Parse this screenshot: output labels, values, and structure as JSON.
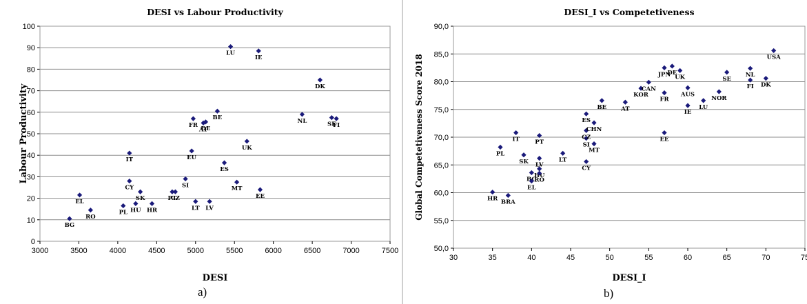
{
  "chart_data": [
    {
      "type": "scatter",
      "title": "DESI vs Labour Productivity",
      "xlabel": "DESI",
      "ylabel": "Labour Productivity",
      "xlim": [
        3000,
        7500
      ],
      "ylim": [
        0,
        100
      ],
      "x_ticks": [
        "3000",
        "3500",
        "4000",
        "4500",
        "5000",
        "5500",
        "6000",
        "6500",
        "7000",
        "7500"
      ],
      "y_ticks": [
        "0",
        "10",
        "20",
        "30",
        "40",
        "50",
        "60",
        "70",
        "80",
        "90",
        "100"
      ],
      "grid": "horizontal",
      "marker_color": "#1a1a7a",
      "points": [
        {
          "label": "BG",
          "x": 3380,
          "y": 10.5
        },
        {
          "label": "EL",
          "x": 3510,
          "y": 21.5
        },
        {
          "label": "RO",
          "x": 3650,
          "y": 14.5
        },
        {
          "label": "PL",
          "x": 4070,
          "y": 16.5
        },
        {
          "label": "IT",
          "x": 4150,
          "y": 41
        },
        {
          "label": "CY",
          "x": 4150,
          "y": 28
        },
        {
          "label": "SK",
          "x": 4290,
          "y": 23
        },
        {
          "label": "HU",
          "x": 4230,
          "y": 17.5
        },
        {
          "label": "HR",
          "x": 4440,
          "y": 17.5
        },
        {
          "label": "PT",
          "x": 4700,
          "y": 23
        },
        {
          "label": "CZ",
          "x": 4740,
          "y": 23
        },
        {
          "label": "SI",
          "x": 4870,
          "y": 29
        },
        {
          "label": "LU",
          "x": 5450,
          "y": 90.5
        },
        {
          "label": "IE",
          "x": 5810,
          "y": 88.5
        },
        {
          "label": "FR",
          "x": 4970,
          "y": 57
        },
        {
          "label": "AT",
          "x": 5100,
          "y": 55
        },
        {
          "label": "DE",
          "x": 5130,
          "y": 55.5
        },
        {
          "label": "BE",
          "x": 5280,
          "y": 60.5
        },
        {
          "label": "EU",
          "x": 4950,
          "y": 42
        },
        {
          "label": "ES",
          "x": 5370,
          "y": 36.5
        },
        {
          "label": "LT",
          "x": 5000,
          "y": 18.5
        },
        {
          "label": "LV",
          "x": 5180,
          "y": 18.5
        },
        {
          "label": "MT",
          "x": 5530,
          "y": 27.5
        },
        {
          "label": "EE",
          "x": 5830,
          "y": 24
        },
        {
          "label": "UK",
          "x": 5660,
          "y": 46.5
        },
        {
          "label": "NL",
          "x": 6370,
          "y": 59
        },
        {
          "label": "DK",
          "x": 6600,
          "y": 75
        },
        {
          "label": "SE",
          "x": 6750,
          "y": 57.5
        },
        {
          "label": "FI",
          "x": 6810,
          "y": 57
        }
      ]
    },
    {
      "type": "scatter",
      "title": "DESI_I vs Competetiveness",
      "xlabel": "DESI_I",
      "ylabel": "Global Competetiveness Score 2018",
      "xlim": [
        30,
        75
      ],
      "ylim": [
        50,
        90
      ],
      "x_ticks": [
        "30",
        "35",
        "40",
        "45",
        "50",
        "55",
        "60",
        "65",
        "70",
        "75"
      ],
      "y_ticks": [
        "50,0",
        "55,0",
        "60,0",
        "65,0",
        "70,0",
        "75,0",
        "80,0",
        "85,0",
        "90,0"
      ],
      "grid": "horizontal",
      "marker_color": "#1a1a7a",
      "points": [
        {
          "label": "HR",
          "x": 35,
          "y": 60.1
        },
        {
          "label": "BRA",
          "x": 37,
          "y": 59.5
        },
        {
          "label": "PL",
          "x": 36,
          "y": 68.2
        },
        {
          "label": "IT",
          "x": 38,
          "y": 70.8
        },
        {
          "label": "SK",
          "x": 39,
          "y": 66.8
        },
        {
          "label": "BG",
          "x": 40,
          "y": 63.6
        },
        {
          "label": "EL",
          "x": 40,
          "y": 62.1
        },
        {
          "label": "HU",
          "x": 41,
          "y": 64.3
        },
        {
          "label": "RO",
          "x": 41,
          "y": 63.5
        },
        {
          "label": "LV",
          "x": 41,
          "y": 66.2
        },
        {
          "label": "PT",
          "x": 41,
          "y": 70.3
        },
        {
          "label": "LT",
          "x": 44,
          "y": 67.1
        },
        {
          "label": "CY",
          "x": 47,
          "y": 65.6
        },
        {
          "label": "SI",
          "x": 47,
          "y": 69.8
        },
        {
          "label": "CZ",
          "x": 47,
          "y": 71.2
        },
        {
          "label": "MT",
          "x": 48,
          "y": 68.8
        },
        {
          "label": "CHN",
          "x": 48,
          "y": 72.6
        },
        {
          "label": "ES",
          "x": 47,
          "y": 74.2
        },
        {
          "label": "BE",
          "x": 49,
          "y": 76.6
        },
        {
          "label": "AT",
          "x": 52,
          "y": 76.3
        },
        {
          "label": "KOR",
          "x": 54,
          "y": 78.8
        },
        {
          "label": "CAN",
          "x": 55,
          "y": 79.9
        },
        {
          "label": "FR",
          "x": 57,
          "y": 78
        },
        {
          "label": "EE",
          "x": 57,
          "y": 70.8
        },
        {
          "label": "JPN",
          "x": 57,
          "y": 82.5
        },
        {
          "label": "DE",
          "x": 58,
          "y": 82.8
        },
        {
          "label": "UK",
          "x": 59,
          "y": 82
        },
        {
          "label": "AUS",
          "x": 60,
          "y": 78.9
        },
        {
          "label": "IE",
          "x": 60,
          "y": 75.7
        },
        {
          "label": "LU",
          "x": 62,
          "y": 76.6
        },
        {
          "label": "NOR",
          "x": 64,
          "y": 78.2
        },
        {
          "label": "SE",
          "x": 65,
          "y": 81.7
        },
        {
          "label": "NL",
          "x": 68,
          "y": 82.4
        },
        {
          "label": "FI",
          "x": 68,
          "y": 80.3
        },
        {
          "label": "DK",
          "x": 70,
          "y": 80.6
        },
        {
          "label": "USA",
          "x": 71,
          "y": 85.6
        }
      ]
    }
  ],
  "captions": {
    "a": "a)",
    "b": "b)"
  }
}
